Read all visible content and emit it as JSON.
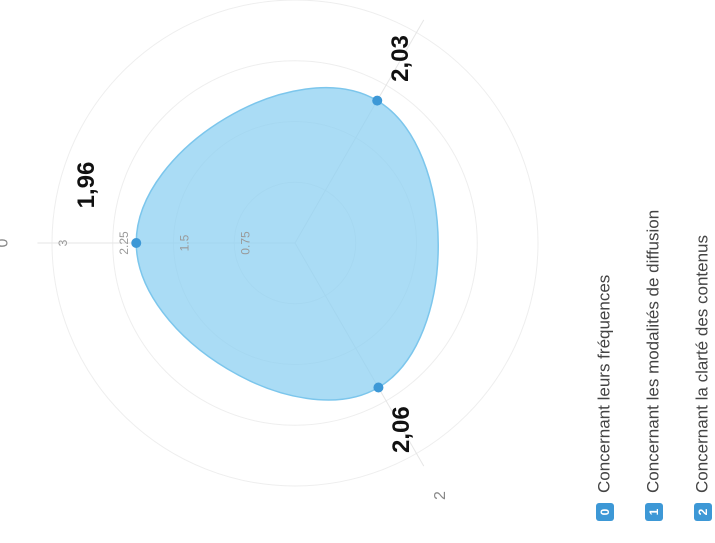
{
  "chart_data": {
    "type": "radar",
    "categories": [
      "0",
      "1",
      "2"
    ],
    "series": [
      {
        "color": "#8ed0f2",
        "values": [
          1.96,
          2.03,
          2.06
        ],
        "value_labels": [
          "1,96",
          "2,03",
          "2,06"
        ]
      }
    ],
    "rlim": [
      0,
      3
    ],
    "rticks": [
      0.75,
      1.5,
      2.25,
      3
    ],
    "grid": true,
    "legend": [
      "Concernant leurs fréquences",
      "Concernant les modalités de diffusion",
      "Concernant la clarté des contenus"
    ]
  }
}
